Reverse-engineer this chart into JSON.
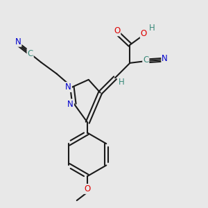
{
  "background_color": "#e8e8e8",
  "bond_color": "#1a1a1a",
  "atom_colors": {
    "N": "#0000cc",
    "O": "#dd0000",
    "H": "#3a8a7a",
    "C_teal": "#3a8a7a"
  },
  "figsize": [
    3.0,
    3.0
  ],
  "dpi": 100,
  "lw": 1.5,
  "fs": 8.5
}
